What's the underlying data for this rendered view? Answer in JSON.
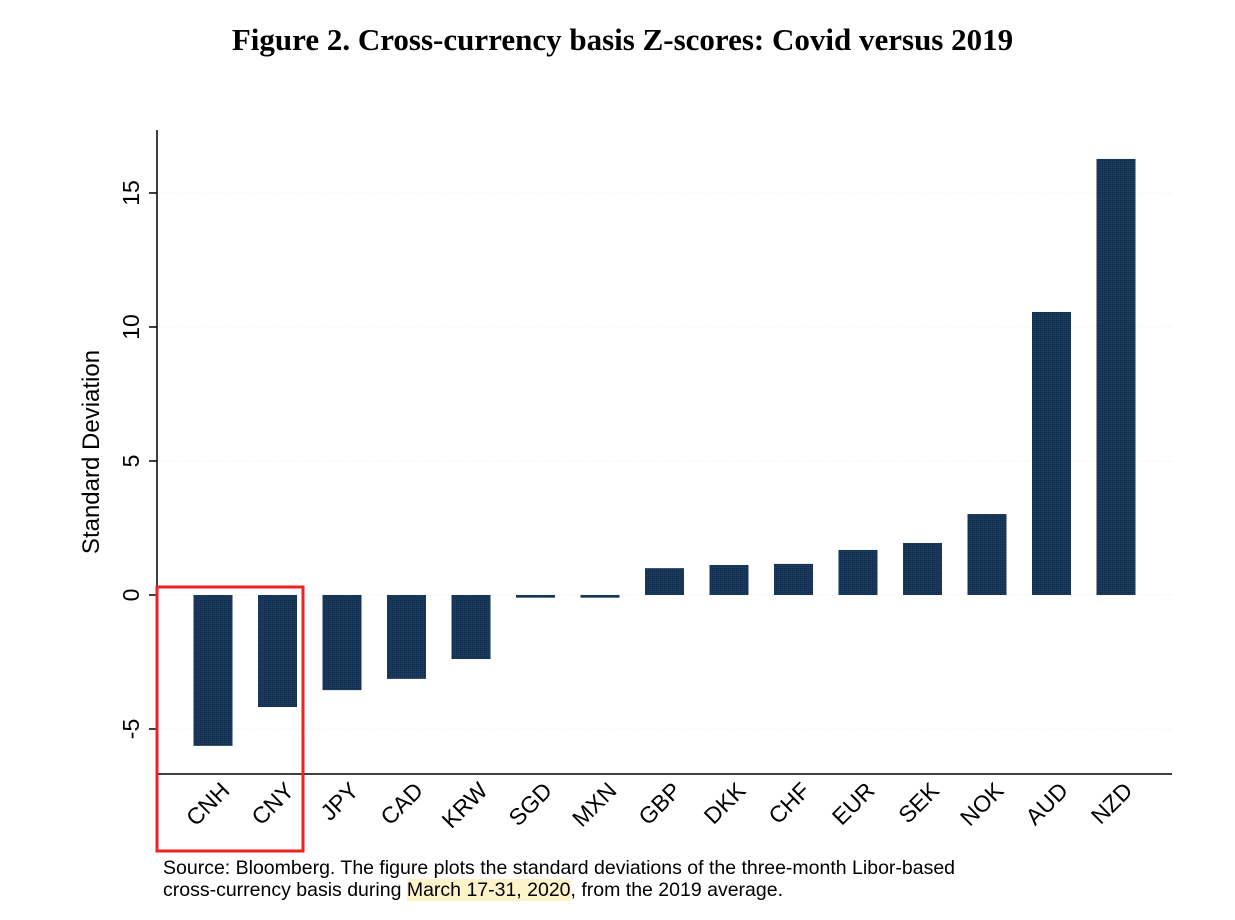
{
  "title": "Figure 2. Cross-currency basis Z-scores: Covid versus 2019",
  "caption": {
    "line1": "Source: Bloomberg. The figure plots the standard deviations of the three-month Libor-based",
    "line2_before": "cross-currency basis during ",
    "line2_highlight": "March 17-31, 2020",
    "line2_after": ", from the 2019 average."
  },
  "colors": {
    "bar": "#1b3a5c",
    "grid": "#d8f3f3",
    "highlight_box": "#ee2222",
    "highlight_text": "#fdf3c8"
  },
  "highlighted_categories": [
    "CNH",
    "CNY"
  ],
  "chart_data": {
    "type": "bar",
    "title": "Figure 2. Cross-currency basis Z-scores: Covid versus 2019",
    "xlabel": "",
    "ylabel": "Standard Deviation",
    "categories": [
      "CNH",
      "CNY",
      "JPY",
      "CAD",
      "KRW",
      "SGD",
      "MXN",
      "GBP",
      "DKK",
      "CHF",
      "EUR",
      "SEK",
      "NOK",
      "AUD",
      "NZD"
    ],
    "values": [
      -5.63,
      -4.18,
      -3.55,
      -3.13,
      -2.39,
      -0.1,
      -0.1,
      1.0,
      1.12,
      1.16,
      1.68,
      1.94,
      3.02,
      10.56,
      16.27
    ],
    "yticks": [
      -5,
      0,
      5,
      10,
      15
    ],
    "ytick_labels": [
      "-5",
      "0",
      "5",
      "10",
      "15"
    ],
    "ylim": [
      -6.68,
      17.35
    ],
    "grid": true,
    "legend": "none"
  }
}
